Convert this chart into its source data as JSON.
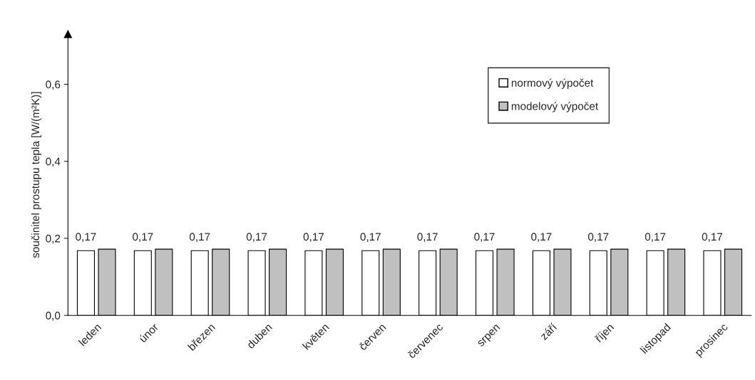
{
  "chart_data": {
    "type": "bar",
    "ylabel": "součinitel prostupu tepla [W/(m²K)]",
    "categories": [
      "leden",
      "únor",
      "březen",
      "duben",
      "květen",
      "červen",
      "červenec",
      "srpen",
      "září",
      "říjen",
      "listopad",
      "prosinec"
    ],
    "series": [
      {
        "name": "normový výpočet",
        "color": "#ffffff",
        "values": [
          0.168,
          0.168,
          0.168,
          0.168,
          0.168,
          0.168,
          0.168,
          0.168,
          0.168,
          0.168,
          0.168,
          0.168
        ],
        "value_labels": [
          "0,17",
          "0,17",
          "0,17",
          "0,17",
          "0,17",
          "0,17",
          "0,17",
          "0,17",
          "0,17",
          "0,17",
          "0,17",
          "0,17"
        ]
      },
      {
        "name": "modelový výpočet",
        "color": "#c0c0c0",
        "values": [
          0.172,
          0.172,
          0.172,
          0.172,
          0.172,
          0.172,
          0.172,
          0.172,
          0.172,
          0.172,
          0.172,
          0.172
        ]
      }
    ],
    "ylim": [
      0,
      0.73
    ],
    "yticks": [
      {
        "value": 0,
        "label": "0,0"
      },
      {
        "value": 0.2,
        "label": "0,2"
      },
      {
        "value": 0.4,
        "label": "0,4"
      },
      {
        "value": 0.6,
        "label": "0,6"
      }
    ],
    "grid": false,
    "legend": "top right"
  }
}
